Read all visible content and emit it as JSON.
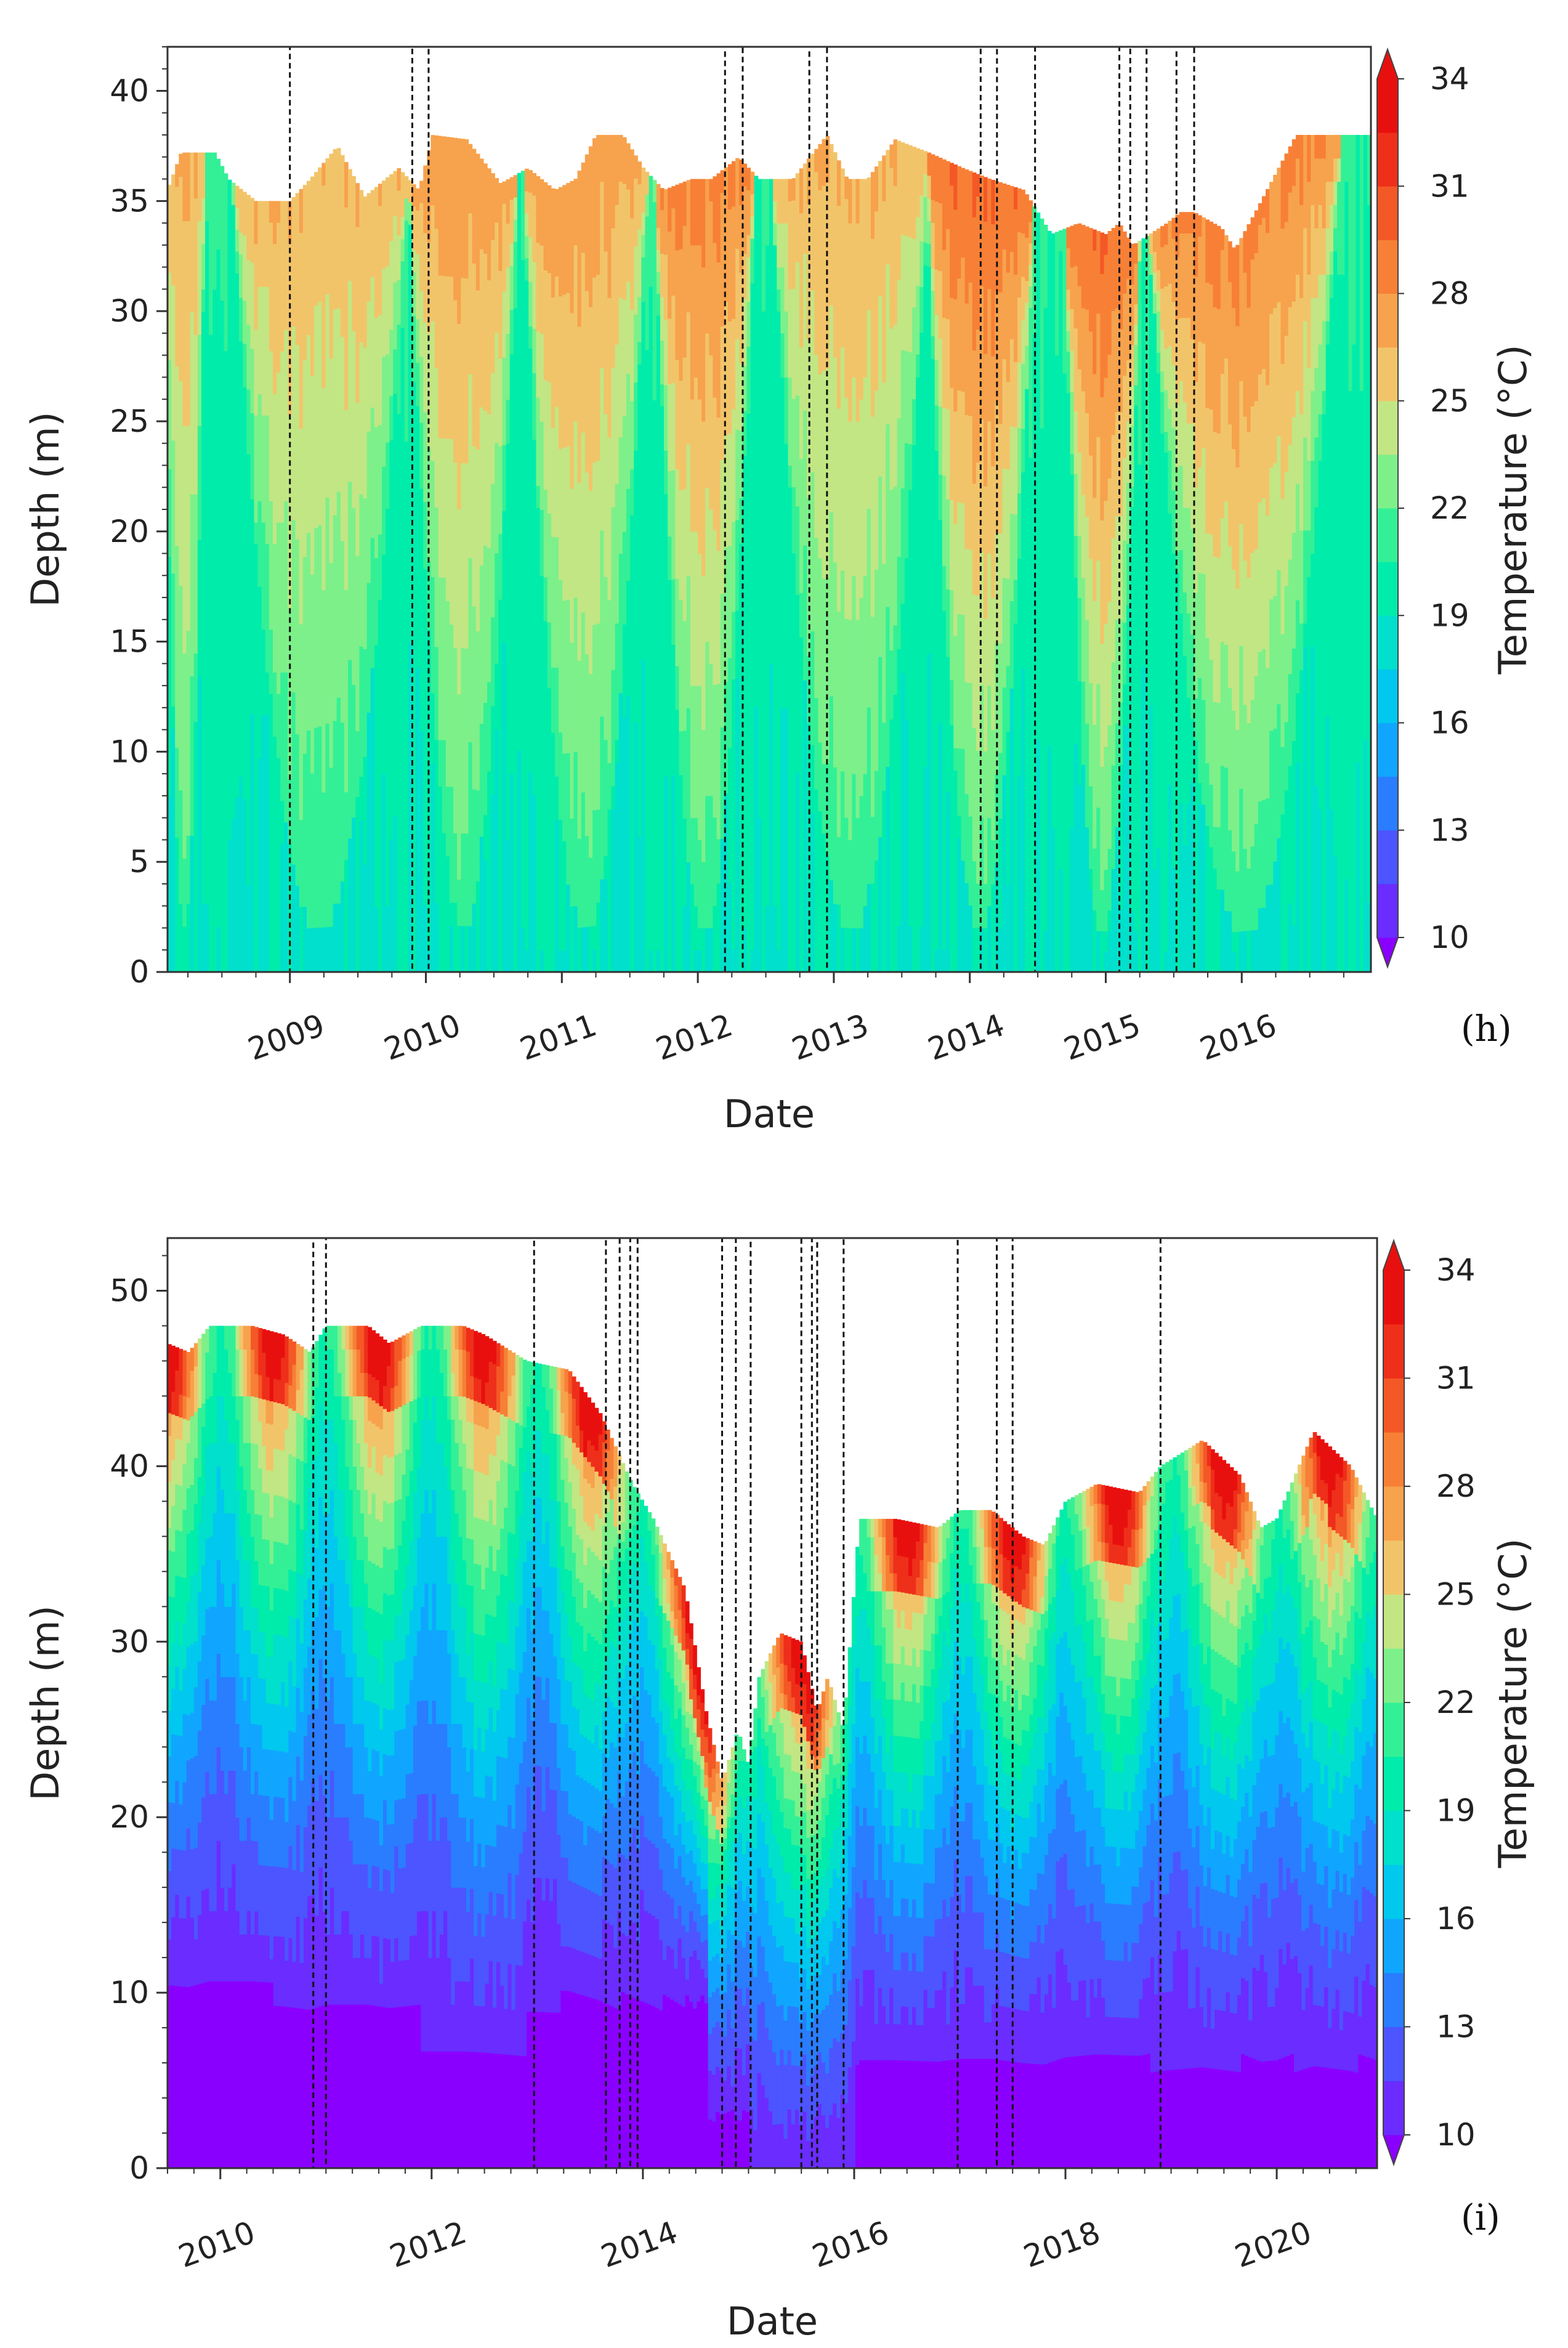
{
  "figure": {
    "colorbar": {
      "label": "Temperature (°C)",
      "levels": [
        10,
        11.5,
        13,
        14.5,
        16,
        17.5,
        19,
        20.5,
        22,
        23.5,
        25,
        26.5,
        28,
        29.5,
        31,
        32.5,
        34
      ],
      "tick_values": [
        10,
        13,
        16,
        19,
        22,
        25,
        28,
        31,
        34
      ],
      "tick_labels": [
        "10",
        "13",
        "16",
        "19",
        "22",
        "25",
        "28",
        "31",
        "34"
      ],
      "colors": [
        "#8a00ff",
        "#6a2cff",
        "#4c55ff",
        "#2a7dff",
        "#10a6ff",
        "#00c8ee",
        "#00e0cc",
        "#00ecab",
        "#33f096",
        "#7df08a",
        "#c2e684",
        "#f2c46a",
        "#f7a24d",
        "#f78036",
        "#f45826",
        "#ee2f1a",
        "#e8100e"
      ],
      "extend": "both"
    }
  },
  "chart_data": [
    {
      "type": "heatmap",
      "panel_label": "(h)",
      "xlabel": "Date",
      "ylabel": "Depth (m)",
      "zlabel": "Temperature (°C)",
      "xlim": [
        2008.1,
        2016.95
      ],
      "ylim": [
        0,
        42
      ],
      "x_ticks": [
        2009,
        2010,
        2011,
        2012,
        2013,
        2014,
        2015,
        2016
      ],
      "x_tick_labels": [
        "2009",
        "2010",
        "2011",
        "2012",
        "2013",
        "2014",
        "2015",
        "2016"
      ],
      "y_ticks": [
        0,
        5,
        10,
        15,
        20,
        25,
        30,
        35,
        40
      ],
      "y_tick_labels": [
        "0",
        "5",
        "10",
        "15",
        "20",
        "25",
        "30",
        "35",
        "40"
      ],
      "surface_depth": {
        "x": [
          2008.1,
          2008.2,
          2008.45,
          2008.55,
          2008.75,
          2009.0,
          2009.15,
          2009.35,
          2009.55,
          2009.8,
          2009.95,
          2010.05,
          2010.3,
          2010.55,
          2010.75,
          2010.95,
          2011.1,
          2011.25,
          2011.45,
          2011.6,
          2011.75,
          2011.95,
          2012.1,
          2012.3,
          2012.45,
          2012.7,
          2012.95,
          2013.1,
          2013.25,
          2013.45,
          2013.7,
          2013.95,
          2014.15,
          2014.4,
          2014.6,
          2014.8,
          2015.0,
          2015.1,
          2015.2,
          2015.45,
          2015.55,
          2015.65,
          2015.85,
          2015.95,
          2016.1,
          2016.4,
          2016.95
        ],
        "y": [
          35.5,
          37.2,
          37.2,
          36.0,
          35.0,
          35.0,
          36.0,
          37.5,
          35.2,
          36.5,
          35.5,
          38.0,
          37.8,
          35.8,
          36.5,
          35.5,
          36.0,
          38.0,
          38.0,
          36.5,
          35.5,
          36.0,
          36.0,
          37.0,
          36.0,
          36.0,
          38.0,
          36.0,
          36.0,
          37.8,
          37.2,
          36.5,
          36.0,
          35.5,
          33.5,
          34.0,
          33.5,
          34.0,
          33.0,
          34.0,
          34.5,
          34.5,
          33.8,
          32.8,
          34.5,
          38.0,
          38.0
        ]
      },
      "warm_seasons": [
        {
          "start": 2008.1,
          "end": 2008.35,
          "peak_temp": 28
        },
        {
          "start": 2008.7,
          "end": 2009.75,
          "peak_temp": 28
        },
        {
          "start": 2009.95,
          "end": 2010.6,
          "peak_temp": 29
        },
        {
          "start": 2010.8,
          "end": 2011.55,
          "peak_temp": 29
        },
        {
          "start": 2011.75,
          "end": 2012.35,
          "peak_temp": 30
        },
        {
          "start": 2012.65,
          "end": 2013.6,
          "peak_temp": 28
        },
        {
          "start": 2013.75,
          "end": 2014.4,
          "peak_temp": 31
        },
        {
          "start": 2014.75,
          "end": 2015.2,
          "peak_temp": 31
        },
        {
          "start": 2015.45,
          "end": 2016.6,
          "peak_temp": 30
        }
      ],
      "event_boxes": [
        [
          2008.1,
          2009.0
        ],
        [
          2009.9,
          2010.02
        ],
        [
          2012.2,
          2012.33
        ],
        [
          2012.82,
          2012.95
        ],
        [
          2014.08,
          2014.2
        ],
        [
          2014.48,
          2015.1
        ],
        [
          2015.18,
          2015.3
        ],
        [
          2015.52,
          2015.65
        ]
      ]
    },
    {
      "type": "heatmap",
      "panel_label": "(i)",
      "xlabel": "Date",
      "ylabel": "Depth (m)",
      "zlabel": "Temperature (°C)",
      "xlim": [
        2009.5,
        2020.95
      ],
      "ylim": [
        0,
        53
      ],
      "x_ticks": [
        2010,
        2012,
        2014,
        2016,
        2018,
        2020
      ],
      "x_tick_labels": [
        "2010",
        "2012",
        "2014",
        "2016",
        "2018",
        "2020"
      ],
      "y_ticks": [
        0,
        10,
        20,
        30,
        40,
        50
      ],
      "y_tick_labels": [
        "0",
        "10",
        "20",
        "30",
        "40",
        "50"
      ],
      "surface_depth": {
        "x": [
          2009.5,
          2009.7,
          2009.9,
          2010.3,
          2010.6,
          2010.85,
          2011.0,
          2011.4,
          2011.6,
          2011.9,
          2012.3,
          2012.5,
          2012.9,
          2013.3,
          2013.6,
          2013.9,
          2014.1,
          2014.4,
          2014.6,
          2014.75,
          2014.85,
          2014.9,
          2015.0,
          2015.1,
          2015.3,
          2015.5,
          2015.65,
          2015.75,
          2015.9,
          2016.05,
          2016.4,
          2016.8,
          2017.0,
          2017.3,
          2017.6,
          2017.8,
          2018.0,
          2018.3,
          2018.7,
          2018.9,
          2019.3,
          2019.65,
          2019.85,
          2020.0,
          2020.35,
          2020.7,
          2020.95
        ],
        "y": [
          47.0,
          46.5,
          48.0,
          48.0,
          47.5,
          46.5,
          48.0,
          48.0,
          47.0,
          48.0,
          48.0,
          47.5,
          46.0,
          45.5,
          43.0,
          39.0,
          37.0,
          33.0,
          26.0,
          22.0,
          24.0,
          25.0,
          23.0,
          28.0,
          30.5,
          30.0,
          26.0,
          28.0,
          25.0,
          37.0,
          37.0,
          36.5,
          37.5,
          37.5,
          36.0,
          35.5,
          38.0,
          39.0,
          38.5,
          40.0,
          41.5,
          39.5,
          36.5,
          37.0,
          42.0,
          40.0,
          37.0
        ]
      },
      "cold_bottom_layer": [
        {
          "start": 2009.5,
          "end": 2009.75,
          "top": 10.5
        },
        {
          "start": 2009.75,
          "end": 2010.5,
          "top": 10.3
        },
        {
          "start": 2010.5,
          "end": 2011.9,
          "top": 9.0
        },
        {
          "start": 2011.9,
          "end": 2012.9,
          "top": 6.0
        },
        {
          "start": 2012.9,
          "end": 2014.6,
          "top": 9.5
        },
        {
          "start": 2014.6,
          "end": 2015.0,
          "top": 3.0
        },
        {
          "start": 2015.0,
          "end": 2016.0,
          "top": 0.0
        },
        {
          "start": 2016.0,
          "end": 2020.95,
          "top": 6.0
        }
      ],
      "event_boxes": [
        [
          2010.88,
          2011.0
        ],
        [
          2012.97,
          2013.65
        ],
        [
          2013.78,
          2013.88
        ],
        [
          2013.95,
          2014.75
        ],
        [
          2014.88,
          2015.02
        ],
        [
          2015.5,
          2015.6
        ],
        [
          2015.65,
          2015.9
        ],
        [
          2016.98,
          2017.35
        ],
        [
          2017.5,
          2018.9
        ]
      ]
    }
  ]
}
